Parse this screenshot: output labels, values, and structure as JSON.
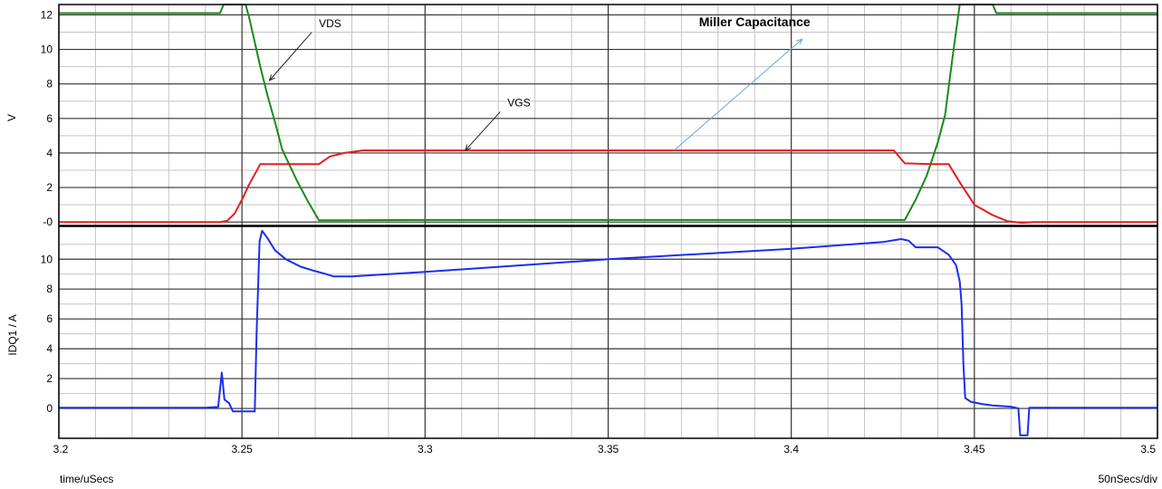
{
  "chart_data": [
    {
      "type": "line",
      "panel": "top",
      "ylabel": "V",
      "xlim": [
        3.2,
        3.5
      ],
      "ylim": [
        -0.2,
        12.6
      ],
      "yticks": [
        0,
        2,
        4,
        6,
        8,
        10,
        12
      ],
      "ytick_labels": [
        "-0",
        "2",
        "4",
        "6",
        "8",
        "10",
        "12"
      ],
      "grid": true,
      "series": [
        {
          "name": "VDS",
          "color": "#1a8a1a",
          "points": [
            [
              3.2,
              12.1
            ],
            [
              3.244,
              12.1
            ],
            [
              3.245,
              12.6
            ],
            [
              3.251,
              12.6
            ],
            [
              3.252,
              11.8
            ],
            [
              3.255,
              9.0
            ],
            [
              3.257,
              7.3
            ],
            [
              3.259,
              5.8
            ],
            [
              3.261,
              4.2
            ],
            [
              3.263,
              3.3
            ],
            [
              3.265,
              2.4
            ],
            [
              3.268,
              1.2
            ],
            [
              3.271,
              0.1
            ],
            [
              3.3,
              0.12
            ],
            [
              3.35,
              0.12
            ],
            [
              3.4,
              0.12
            ],
            [
              3.431,
              0.12
            ],
            [
              3.434,
              1.3
            ],
            [
              3.437,
              2.7
            ],
            [
              3.44,
              4.6
            ],
            [
              3.442,
              6.2
            ],
            [
              3.444,
              9.5
            ],
            [
              3.446,
              12.6
            ],
            [
              3.455,
              12.6
            ],
            [
              3.456,
              12.1
            ],
            [
              3.5,
              12.1
            ]
          ]
        },
        {
          "name": "VGS",
          "color": "#e02020",
          "points": [
            [
              3.2,
              0.0
            ],
            [
              3.244,
              0.0
            ],
            [
              3.246,
              0.08
            ],
            [
              3.248,
              0.5
            ],
            [
              3.25,
              1.3
            ],
            [
              3.252,
              2.2
            ],
            [
              3.255,
              3.35
            ],
            [
              3.271,
              3.35
            ],
            [
              3.274,
              3.8
            ],
            [
              3.278,
              4.0
            ],
            [
              3.283,
              4.15
            ],
            [
              3.3,
              4.15
            ],
            [
              3.35,
              4.15
            ],
            [
              3.4,
              4.15
            ],
            [
              3.428,
              4.15
            ],
            [
              3.431,
              3.4
            ],
            [
              3.439,
              3.35
            ],
            [
              3.443,
              3.35
            ],
            [
              3.446,
              2.3
            ],
            [
              3.45,
              1.0
            ],
            [
              3.455,
              0.4
            ],
            [
              3.459,
              0.05
            ],
            [
              3.463,
              -0.05
            ],
            [
              3.466,
              0.0
            ],
            [
              3.5,
              0.0
            ]
          ]
        }
      ],
      "annotations": [
        {
          "text": "VDS",
          "x": 3.271,
          "y": 11.3,
          "arrow_to": [
            3.2575,
            8.2
          ],
          "color": "#000000",
          "bold": false
        },
        {
          "text": "VGS",
          "x": 3.3225,
          "y": 6.7,
          "arrow_to": [
            3.311,
            4.15
          ],
          "color": "#000000",
          "bold": false
        },
        {
          "text": "Miller Capacitance",
          "x": 3.39,
          "y": 11.6,
          "arrow_to": [
            3.368,
            4.15
          ],
          "arrow_end": [
            3.403,
            10.6
          ],
          "color": "#6aa6d8",
          "bold": true
        }
      ]
    },
    {
      "type": "line",
      "panel": "bottom",
      "ylabel": "IDQ1 / A",
      "xlabel": "time/uSecs",
      "x_scale_label": "50nSecs/div",
      "xlim": [
        3.2,
        3.5
      ],
      "ylim": [
        -2.0,
        12.2
      ],
      "xticks": [
        3.2,
        3.25,
        3.3,
        3.35,
        3.4,
        3.45,
        3.5
      ],
      "xtick_labels": [
        "3.2",
        "3.25",
        "3.3",
        "3.35",
        "3.4",
        "3.45",
        "3.5"
      ],
      "yticks": [
        0,
        2,
        4,
        6,
        8,
        10
      ],
      "ytick_labels": [
        "0",
        "2",
        "4",
        "6",
        "8",
        "10"
      ],
      "grid": true,
      "series": [
        {
          "name": "IDQ1",
          "color": "#1a2ef0",
          "points": [
            [
              3.2,
              0.05
            ],
            [
              3.24,
              0.05
            ],
            [
              3.2435,
              0.1
            ],
            [
              3.2445,
              2.4
            ],
            [
              3.2452,
              0.6
            ],
            [
              3.2465,
              0.35
            ],
            [
              3.2475,
              -0.2
            ],
            [
              3.2535,
              -0.2
            ],
            [
              3.254,
              5.0
            ],
            [
              3.2548,
              11.2
            ],
            [
              3.2555,
              11.9
            ],
            [
              3.257,
              11.4
            ],
            [
              3.259,
              10.6
            ],
            [
              3.262,
              10.0
            ],
            [
              3.266,
              9.5
            ],
            [
              3.27,
              9.2
            ],
            [
              3.273,
              9.0
            ],
            [
              3.275,
              8.85
            ],
            [
              3.28,
              8.85
            ],
            [
              3.3,
              9.15
            ],
            [
              3.35,
              10.0
            ],
            [
              3.4,
              10.7
            ],
            [
              3.425,
              11.15
            ],
            [
              3.43,
              11.35
            ],
            [
              3.432,
              11.25
            ],
            [
              3.434,
              10.8
            ],
            [
              3.44,
              10.8
            ],
            [
              3.443,
              10.3
            ],
            [
              3.445,
              9.6
            ],
            [
              3.446,
              8.5
            ],
            [
              3.4465,
              7.0
            ],
            [
              3.447,
              3.0
            ],
            [
              3.4475,
              0.7
            ],
            [
              3.449,
              0.45
            ],
            [
              3.452,
              0.3
            ],
            [
              3.455,
              0.2
            ],
            [
              3.46,
              0.12
            ],
            [
              3.462,
              0.0
            ],
            [
              3.4625,
              -1.8
            ],
            [
              3.4645,
              -1.8
            ],
            [
              3.465,
              0.05
            ],
            [
              3.5,
              0.05
            ]
          ]
        }
      ]
    }
  ]
}
